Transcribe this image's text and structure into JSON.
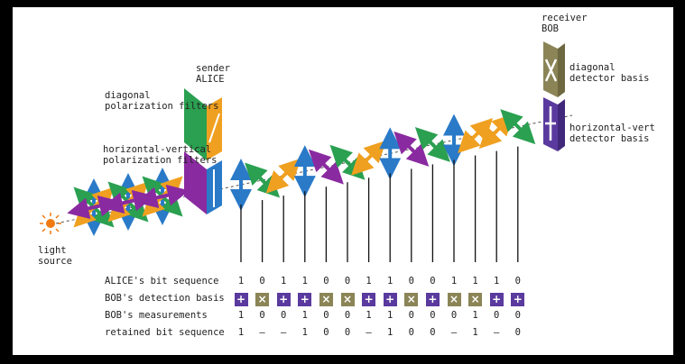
{
  "labels": {
    "sender": "sender\nALICE",
    "receiver": "receiver\nBOB",
    "diag_filters": "diagonal\npolarization filters",
    "hv_filters": "horizontal-vertical\npolarization filters",
    "diag_detector": "diagonal\ndetector basis",
    "hv_detector": "horizontal-vert\ndetector basis",
    "light_source": "light\nsource"
  },
  "rows": {
    "alice_bits": {
      "label": "ALICE's bit sequence",
      "values": [
        "1",
        "0",
        "1",
        "1",
        "0",
        "0",
        "1",
        "1",
        "0",
        "0",
        "1",
        "1",
        "1",
        "0"
      ]
    },
    "bob_basis": {
      "label": "BOB's detection basis",
      "values": [
        "+",
        "x",
        "+",
        "+",
        "x",
        "x",
        "+",
        "+",
        "x",
        "+",
        "x",
        "x",
        "+",
        "+"
      ]
    },
    "bob_measurements": {
      "label": "BOB's measurements",
      "values": [
        "1",
        "0",
        "0",
        "1",
        "0",
        "0",
        "1",
        "1",
        "0",
        "0",
        "0",
        "1",
        "0",
        "0"
      ]
    },
    "retained": {
      "label": "retained bit sequence",
      "values": [
        "1",
        "–",
        "–",
        "1",
        "0",
        "0",
        "–",
        "1",
        "0",
        "0",
        "–",
        "1",
        "–",
        "0"
      ]
    }
  },
  "photon_polarizations": [
    "vertical",
    "diag-down",
    "diag-up",
    "vertical",
    "diag-down",
    "diag-down",
    "diag-up",
    "vertical",
    "diag-down",
    "diag-down",
    "vertical",
    "diag-up",
    "diag-up",
    "diag-down"
  ],
  "colors": {
    "plus_basis": "#5a3a9e",
    "x_basis": "#8b8456",
    "vertical": "#2a7ac8",
    "diag_down": "#8a2aa0",
    "diag_up": "#f0a020",
    "diag_green": "#2aa050",
    "source": "#f07a10"
  }
}
